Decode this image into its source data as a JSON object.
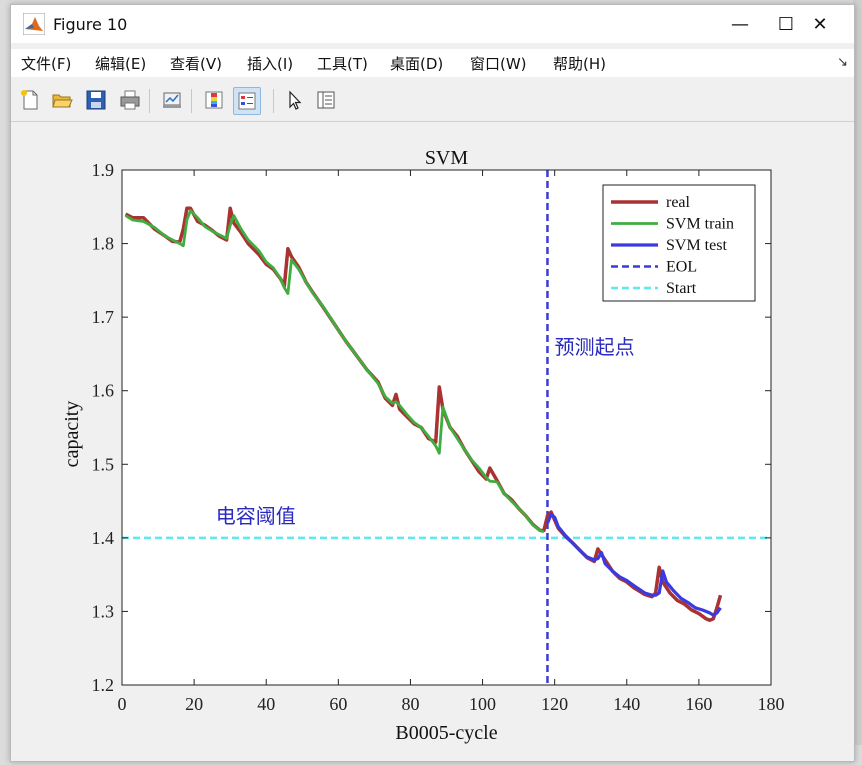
{
  "window": {
    "title": "Figure 10",
    "minimize_glyph": "—",
    "maximize_glyph": "☐",
    "close_glyph": "✕"
  },
  "menu": {
    "items": [
      "文件(F)",
      "编辑(E)",
      "查看(V)",
      "插入(I)",
      "工具(T)",
      "桌面(D)",
      "窗口(W)",
      "帮助(H)"
    ]
  },
  "toolbar": {
    "icons": [
      "new-figure-icon",
      "open-file-icon",
      "save-icon",
      "print-icon",
      "link-plot-icon",
      "insert-colorbar-icon",
      "insert-legend-icon",
      "edit-plot-arrow-icon",
      "property-inspector-icon"
    ]
  },
  "colors": {
    "real": "#a93232",
    "svm_train": "#3fae3f",
    "svm_test": "#3a3ae0",
    "eol": "#3b3bd6",
    "start": "#5fe8ee",
    "annotation": "#2a2abf"
  },
  "chart_data": {
    "type": "line",
    "title": "SVM",
    "xlabel": "B0005-cycle",
    "ylabel": "capacity",
    "xlim": [
      0,
      180
    ],
    "ylim": [
      1.2,
      1.9
    ],
    "xticks": [
      "0",
      "20",
      "40",
      "60",
      "80",
      "100",
      "120",
      "140",
      "160",
      "180"
    ],
    "yticks": [
      "1.2",
      "1.3",
      "1.4",
      "1.5",
      "1.6",
      "1.7",
      "1.8",
      "1.9"
    ],
    "grid": false,
    "legend_position": "top-right",
    "legend": [
      "real",
      "SVM train",
      "SVM test",
      "EOL",
      "Start"
    ],
    "series": [
      {
        "name": "real",
        "points": [
          [
            1,
            1.84
          ],
          [
            3,
            1.835
          ],
          [
            6,
            1.835
          ],
          [
            9,
            1.82
          ],
          [
            12,
            1.81
          ],
          [
            14,
            1.803
          ],
          [
            16,
            1.802
          ],
          [
            17,
            1.82
          ],
          [
            18,
            1.848
          ],
          [
            19,
            1.848
          ],
          [
            21,
            1.83
          ],
          [
            23,
            1.825
          ],
          [
            25,
            1.818
          ],
          [
            27,
            1.81
          ],
          [
            29,
            1.805
          ],
          [
            30,
            1.848
          ],
          [
            31,
            1.828
          ],
          [
            33,
            1.815
          ],
          [
            35,
            1.8
          ],
          [
            38,
            1.785
          ],
          [
            40,
            1.772
          ],
          [
            42,
            1.765
          ],
          [
            44,
            1.752
          ],
          [
            45,
            1.742
          ],
          [
            46,
            1.793
          ],
          [
            47,
            1.782
          ],
          [
            49,
            1.768
          ],
          [
            51,
            1.748
          ],
          [
            53,
            1.733
          ],
          [
            56,
            1.712
          ],
          [
            59,
            1.69
          ],
          [
            62,
            1.668
          ],
          [
            65,
            1.648
          ],
          [
            68,
            1.628
          ],
          [
            71,
            1.612
          ],
          [
            73,
            1.59
          ],
          [
            75,
            1.58
          ],
          [
            76,
            1.595
          ],
          [
            77,
            1.575
          ],
          [
            79,
            1.565
          ],
          [
            81,
            1.555
          ],
          [
            83,
            1.55
          ],
          [
            85,
            1.535
          ],
          [
            87,
            1.53
          ],
          [
            88,
            1.605
          ],
          [
            89,
            1.575
          ],
          [
            91,
            1.55
          ],
          [
            93,
            1.538
          ],
          [
            95,
            1.52
          ],
          [
            97,
            1.505
          ],
          [
            99,
            1.49
          ],
          [
            101,
            1.48
          ],
          [
            102,
            1.495
          ],
          [
            104,
            1.478
          ],
          [
            106,
            1.46
          ],
          [
            108,
            1.452
          ],
          [
            110,
            1.44
          ],
          [
            112,
            1.43
          ],
          [
            114,
            1.418
          ],
          [
            116,
            1.41
          ],
          [
            117,
            1.41
          ],
          [
            118,
            1.43
          ],
          [
            119,
            1.435
          ],
          [
            121,
            1.413
          ],
          [
            123,
            1.402
          ],
          [
            125,
            1.393
          ],
          [
            127,
            1.383
          ],
          [
            129,
            1.373
          ],
          [
            131,
            1.368
          ],
          [
            132,
            1.385
          ],
          [
            134,
            1.37
          ],
          [
            136,
            1.355
          ],
          [
            138,
            1.345
          ],
          [
            140,
            1.34
          ],
          [
            142,
            1.332
          ],
          [
            145,
            1.323
          ],
          [
            147,
            1.32
          ],
          [
            148,
            1.325
          ],
          [
            149,
            1.36
          ],
          [
            150,
            1.34
          ],
          [
            152,
            1.325
          ],
          [
            154,
            1.315
          ],
          [
            156,
            1.31
          ],
          [
            158,
            1.302
          ],
          [
            160,
            1.297
          ],
          [
            162,
            1.29
          ],
          [
            163,
            1.288
          ],
          [
            164,
            1.29
          ],
          [
            165,
            1.305
          ],
          [
            166,
            1.322
          ]
        ]
      },
      {
        "name": "SVM train",
        "points": [
          [
            1,
            1.838
          ],
          [
            3,
            1.832
          ],
          [
            6,
            1.83
          ],
          [
            9,
            1.822
          ],
          [
            12,
            1.81
          ],
          [
            14,
            1.805
          ],
          [
            16,
            1.8
          ],
          [
            17,
            1.797
          ],
          [
            18,
            1.832
          ],
          [
            19,
            1.845
          ],
          [
            21,
            1.835
          ],
          [
            23,
            1.823
          ],
          [
            25,
            1.817
          ],
          [
            27,
            1.812
          ],
          [
            29,
            1.807
          ],
          [
            30,
            1.825
          ],
          [
            31,
            1.838
          ],
          [
            33,
            1.82
          ],
          [
            35,
            1.805
          ],
          [
            38,
            1.79
          ],
          [
            40,
            1.775
          ],
          [
            42,
            1.767
          ],
          [
            44,
            1.752
          ],
          [
            45,
            1.74
          ],
          [
            46,
            1.732
          ],
          [
            47,
            1.778
          ],
          [
            49,
            1.765
          ],
          [
            51,
            1.748
          ],
          [
            53,
            1.732
          ],
          [
            56,
            1.713
          ],
          [
            59,
            1.69
          ],
          [
            62,
            1.668
          ],
          [
            65,
            1.648
          ],
          [
            68,
            1.628
          ],
          [
            71,
            1.61
          ],
          [
            73,
            1.592
          ],
          [
            75,
            1.583
          ],
          [
            76,
            1.585
          ],
          [
            77,
            1.58
          ],
          [
            79,
            1.568
          ],
          [
            81,
            1.557
          ],
          [
            83,
            1.55
          ],
          [
            85,
            1.538
          ],
          [
            87,
            1.525
          ],
          [
            88,
            1.515
          ],
          [
            89,
            1.578
          ],
          [
            91,
            1.55
          ],
          [
            93,
            1.535
          ],
          [
            95,
            1.52
          ],
          [
            97,
            1.506
          ],
          [
            99,
            1.495
          ],
          [
            101,
            1.482
          ],
          [
            102,
            1.477
          ],
          [
            104,
            1.476
          ],
          [
            106,
            1.46
          ],
          [
            108,
            1.45
          ],
          [
            110,
            1.44
          ],
          [
            112,
            1.43
          ],
          [
            114,
            1.417
          ],
          [
            116,
            1.41
          ],
          [
            117,
            1.408
          ]
        ]
      },
      {
        "name": "SVM test",
        "points": [
          [
            118,
            1.42
          ],
          [
            119,
            1.432
          ],
          [
            120,
            1.428
          ],
          [
            121,
            1.415
          ],
          [
            123,
            1.403
          ],
          [
            125,
            1.393
          ],
          [
            127,
            1.383
          ],
          [
            129,
            1.374
          ],
          [
            131,
            1.37
          ],
          [
            132,
            1.372
          ],
          [
            133,
            1.38
          ],
          [
            134,
            1.365
          ],
          [
            136,
            1.355
          ],
          [
            138,
            1.347
          ],
          [
            140,
            1.342
          ],
          [
            142,
            1.335
          ],
          [
            145,
            1.325
          ],
          [
            147,
            1.322
          ],
          [
            148,
            1.322
          ],
          [
            149,
            1.325
          ],
          [
            150,
            1.355
          ],
          [
            151,
            1.34
          ],
          [
            153,
            1.328
          ],
          [
            155,
            1.318
          ],
          [
            157,
            1.312
          ],
          [
            159,
            1.305
          ],
          [
            161,
            1.302
          ],
          [
            163,
            1.298
          ],
          [
            164,
            1.295
          ],
          [
            165,
            1.298
          ],
          [
            166,
            1.305
          ]
        ]
      },
      {
        "name": "EOL",
        "x": 118,
        "style": "dashed-vertical"
      },
      {
        "name": "Start",
        "y": 1.4,
        "style": "dashed-horizontal"
      }
    ],
    "annotations": [
      {
        "text": "预测起点",
        "x": 120,
        "y": 1.65
      },
      {
        "text": "电容阈值",
        "x": 26,
        "y": 1.42
      }
    ]
  }
}
